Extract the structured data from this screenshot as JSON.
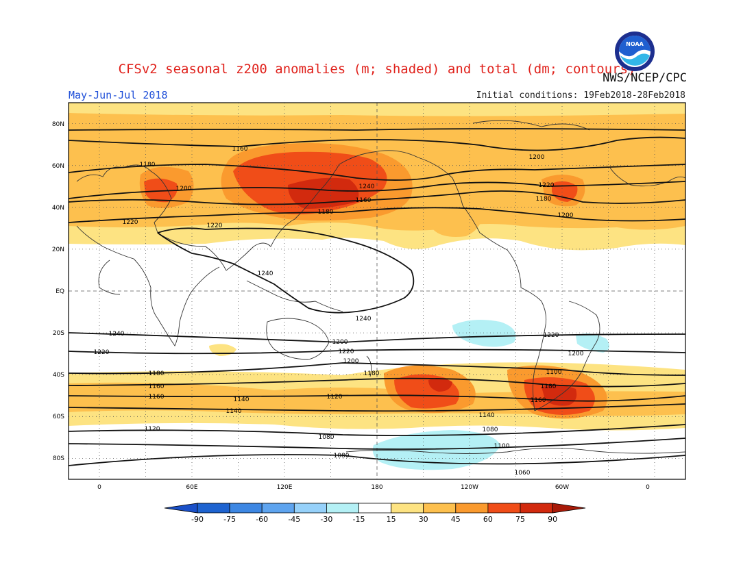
{
  "title": "CFSv2 seasonal z200 anomalies (m; shaded) and total (dm; contours)",
  "organization": "NWS/NCEP/CPC",
  "logo_text": "NOAA",
  "season": "May-Jun-Jul 2018",
  "initial_conditions": "Initial conditions: 19Feb2018-28Feb2018",
  "map": {
    "projection": "cylindrical equidistant",
    "lon_range": [
      -20,
      380
    ],
    "lat_range": [
      -90,
      90
    ],
    "grid": "dotted every 30° lon / 20° lat; dashed equator and dateline",
    "lat_labels": [
      "80N",
      "60N",
      "40N",
      "20N",
      "EQ",
      "20S",
      "40S",
      "60S",
      "80S"
    ],
    "lon_labels": [
      "0",
      "60E",
      "120E",
      "180",
      "120W",
      "60W",
      "0"
    ],
    "contour_labels": [
      "1160",
      "1180",
      "1200",
      "1220",
      "1240",
      "1160",
      "1180",
      "1200",
      "1220",
      "1180",
      "1200",
      "1220",
      "1240",
      "1240",
      "1240",
      "1220",
      "1200",
      "1220",
      "1200",
      "1180",
      "1180",
      "1160",
      "1160",
      "1140",
      "1120",
      "1140",
      "1100",
      "1180",
      "1160",
      "1140",
      "1120",
      "1080",
      "1080",
      "1100",
      "1080",
      "1060",
      "1220",
      "1200"
    ],
    "anomaly_features": [
      {
        "region": "North Pacific / East Asia",
        "level": "60-75 m",
        "color": "#f04d18"
      },
      {
        "region": "South Pacific (~45S,150W)",
        "level": "60-75 m",
        "color": "#f04d18"
      },
      {
        "region": "South Atlantic (~50S,45W)",
        "level": "60-75 m",
        "color": "#f04d18"
      },
      {
        "region": "Southern Ocean (~70S,150W)",
        "level": "-30 to -15 m",
        "color": "#b4f0f5"
      },
      {
        "region": "Subtropical South Pacific (~20S,135W)",
        "level": "-30 to -15 m",
        "color": "#b4f0f5"
      }
    ]
  },
  "colorbar": {
    "labels": [
      "-90",
      "-75",
      "-60",
      "-45",
      "-30",
      "-15",
      "15",
      "30",
      "45",
      "60",
      "75",
      "90"
    ],
    "colors": [
      "#1e63d0",
      "#3d87e3",
      "#5ea4ef",
      "#96d1fa",
      "#b4f0f5",
      "#ffffff",
      "#fde382",
      "#fdc04e",
      "#fa9a2e",
      "#f04d18",
      "#d22a0e"
    ],
    "end_low_color": "#1a50c8",
    "end_high_color": "#a81a08"
  }
}
